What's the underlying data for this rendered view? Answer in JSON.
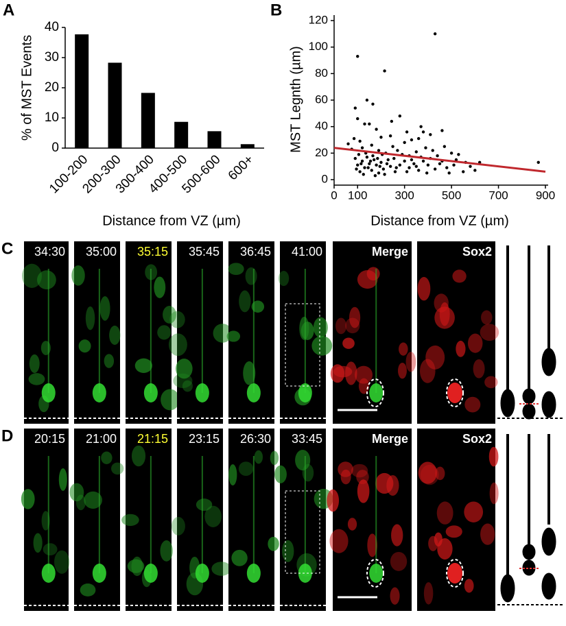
{
  "chart_data": [
    {
      "type": "bar",
      "panel": "A",
      "ylabel": "% of MST Events",
      "xlabel": "Distance from VZ (µm)",
      "categories": [
        "100-200",
        "200-300",
        "300-400",
        "400-500",
        "500-600",
        "600+"
      ],
      "values": [
        37.7,
        28.3,
        18.3,
        8.7,
        5.6,
        1.3
      ],
      "color": "#000000",
      "ylim": [
        0,
        40
      ],
      "yticks": [
        0,
        10,
        20,
        30,
        40
      ]
    },
    {
      "type": "scatter",
      "panel": "B",
      "ylabel": "MST Legnth (µm)",
      "xlabel": "Distance from VZ (µm)",
      "color": "#000000",
      "x": [
        430,
        100,
        215,
        140,
        165,
        90,
        100,
        280,
        460,
        130,
        150,
        370,
        380,
        245,
        310,
        410,
        240,
        200,
        530,
        360,
        330,
        180,
        75,
        60,
        85,
        110,
        120,
        160,
        190,
        220,
        250,
        270,
        300,
        320,
        350,
        390,
        420,
        440,
        470,
        500,
        520,
        560,
        580,
        620,
        870,
        550,
        600,
        480,
        450,
        430,
        400,
        380,
        360,
        340,
        320,
        300,
        280,
        260,
        240,
        230,
        210,
        200,
        190,
        180,
        170,
        160,
        150,
        140,
        130,
        120,
        110,
        100,
        90,
        95,
        105,
        115,
        125,
        135,
        145,
        155,
        165,
        175,
        185,
        195,
        205,
        215,
        225,
        255,
        265,
        290,
        310,
        330,
        350,
        370,
        395,
        410,
        460,
        490,
        510
      ],
      "y": [
        110,
        93,
        82,
        60,
        57,
        54,
        46,
        48,
        37,
        42,
        42,
        40,
        36,
        44,
        36,
        34,
        33,
        32,
        19,
        31,
        30,
        38,
        23,
        27,
        31,
        29,
        24,
        26,
        22,
        20,
        25,
        22,
        28,
        18,
        21,
        24,
        22,
        18,
        25,
        20,
        15,
        13,
        10,
        13,
        13,
        6,
        7,
        9,
        12,
        8,
        11,
        14,
        7,
        12,
        9,
        14,
        11,
        6,
        10,
        15,
        8,
        13,
        5,
        11,
        15,
        7,
        12,
        17,
        9,
        14,
        6,
        11,
        16,
        8,
        19,
        12,
        4,
        20,
        9,
        14,
        18,
        3,
        16,
        10,
        19,
        4,
        12,
        16,
        9,
        19,
        6,
        15,
        10,
        17,
        5,
        16,
        14,
        5,
        11
      ],
      "fit": {
        "x": [
          0,
          900
        ],
        "y": [
          24,
          6
        ],
        "color": "#c0282d"
      },
      "xlim": [
        0,
        900
      ],
      "xticks": [
        0,
        100,
        300,
        500,
        700,
        900
      ],
      "ylim": [
        0,
        120
      ],
      "yticks": [
        0,
        20,
        40,
        60,
        80,
        100,
        120
      ]
    }
  ],
  "panels": [
    {
      "label": "C",
      "frames": [
        {
          "label": "34:30",
          "color": "#ffffff"
        },
        {
          "label": "35:00",
          "color": "#ffffff"
        },
        {
          "label": "35:15",
          "color": "#ffff33"
        },
        {
          "label": "35:45",
          "color": "#ffffff"
        },
        {
          "label": "36:45",
          "color": "#ffffff"
        },
        {
          "label": "41:00",
          "color": "#ffffff"
        },
        {
          "label": "Merge",
          "color": "#ffffff"
        },
        {
          "label": "Sox2",
          "color": "#ffffff"
        }
      ]
    },
    {
      "label": "D",
      "frames": [
        {
          "label": "20:15",
          "color": "#ffffff"
        },
        {
          "label": "21:00",
          "color": "#ffffff"
        },
        {
          "label": "21:15",
          "color": "#ffff33"
        },
        {
          "label": "23:15",
          "color": "#ffffff"
        },
        {
          "label": "26:30",
          "color": "#ffffff"
        },
        {
          "label": "33:45",
          "color": "#ffffff"
        },
        {
          "label": "Merge",
          "color": "#ffffff"
        },
        {
          "label": "Sox2",
          "color": "#ffffff"
        }
      ]
    }
  ]
}
